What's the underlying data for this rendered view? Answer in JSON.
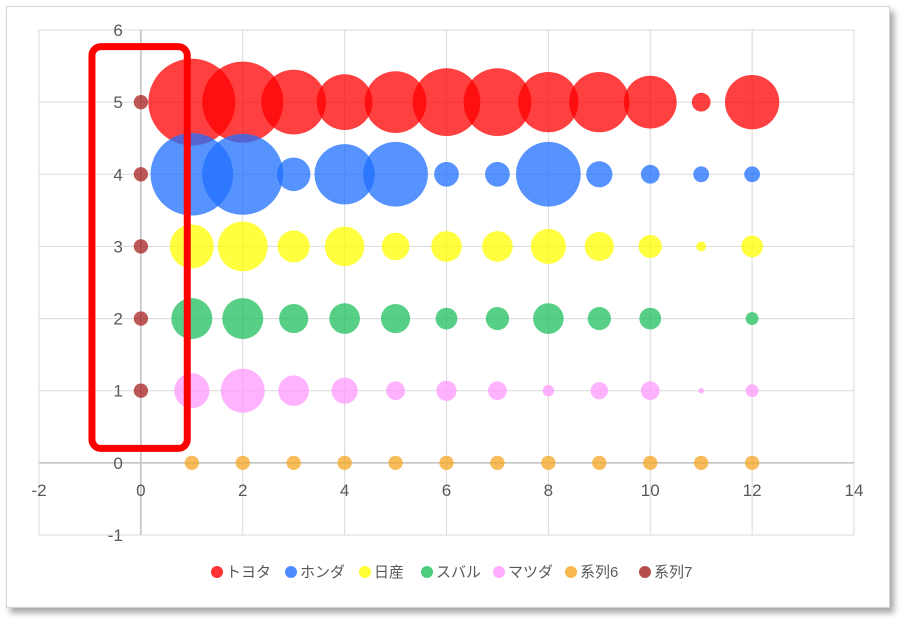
{
  "chart_data": {
    "type": "scatter",
    "title": "",
    "xlabel": "",
    "ylabel": "",
    "xlim": [
      -2,
      14
    ],
    "ylim": [
      -1,
      6
    ],
    "x_ticks": [
      -2,
      0,
      2,
      4,
      6,
      8,
      10,
      12,
      14
    ],
    "y_ticks": [
      -1,
      0,
      1,
      2,
      3,
      4,
      5,
      6
    ],
    "grid": true,
    "legend_position": "bottom",
    "bubble": true,
    "series": [
      {
        "name": "トヨタ",
        "color": "#ff0000",
        "y": 5,
        "x": [
          1,
          2,
          3,
          4,
          5,
          6,
          7,
          8,
          9,
          10,
          11,
          12
        ],
        "size": [
          58,
          54,
          43,
          37,
          41,
          45,
          45,
          40,
          40,
          35,
          12,
          36
        ]
      },
      {
        "name": "ホンダ",
        "color": "#1f6fff",
        "y": 4,
        "x": [
          1,
          2,
          3,
          4,
          5,
          6,
          7,
          8,
          9,
          10,
          11,
          12
        ],
        "size": [
          55,
          54,
          22,
          40,
          43,
          16,
          16,
          43,
          17,
          12,
          10,
          10
        ]
      },
      {
        "name": "日産",
        "color": "#ffff00",
        "y": 3,
        "x": [
          1,
          2,
          3,
          4,
          5,
          6,
          7,
          8,
          9,
          10,
          11,
          12
        ],
        "size": [
          29,
          33,
          21,
          26,
          18,
          20,
          20,
          23,
          19,
          15,
          6,
          14
        ]
      },
      {
        "name": "スバル",
        "color": "#1fbf5f",
        "y": 2,
        "x": [
          1,
          2,
          3,
          4,
          5,
          6,
          7,
          8,
          9,
          10,
          12
        ],
        "size": [
          27,
          27,
          19,
          20,
          19,
          14,
          15,
          20,
          15,
          14,
          8
        ]
      },
      {
        "name": "マツダ",
        "color": "#ff99ff",
        "y": 1,
        "x": [
          1,
          2,
          3,
          4,
          5,
          6,
          7,
          8,
          9,
          10,
          11,
          12
        ],
        "size": [
          23,
          29,
          20,
          17,
          12,
          13,
          12,
          7,
          11,
          12,
          3,
          8
        ]
      },
      {
        "name": "系列6",
        "color": "#f5a623",
        "y": 0,
        "x": [
          1,
          2,
          3,
          4,
          5,
          6,
          7,
          8,
          9,
          10,
          11,
          12
        ],
        "size": [
          9,
          9,
          9,
          9,
          9,
          9,
          9,
          9,
          9,
          9,
          9,
          9
        ]
      },
      {
        "name": "系列7",
        "color": "#a52020",
        "x": 0,
        "y": [
          1,
          2,
          3,
          4,
          5
        ],
        "size": [
          9,
          9,
          9,
          9,
          9
        ]
      }
    ],
    "annotation": {
      "shape": "rounded-rectangle",
      "color": "#ff0000",
      "highlights": "x = 0"
    }
  }
}
